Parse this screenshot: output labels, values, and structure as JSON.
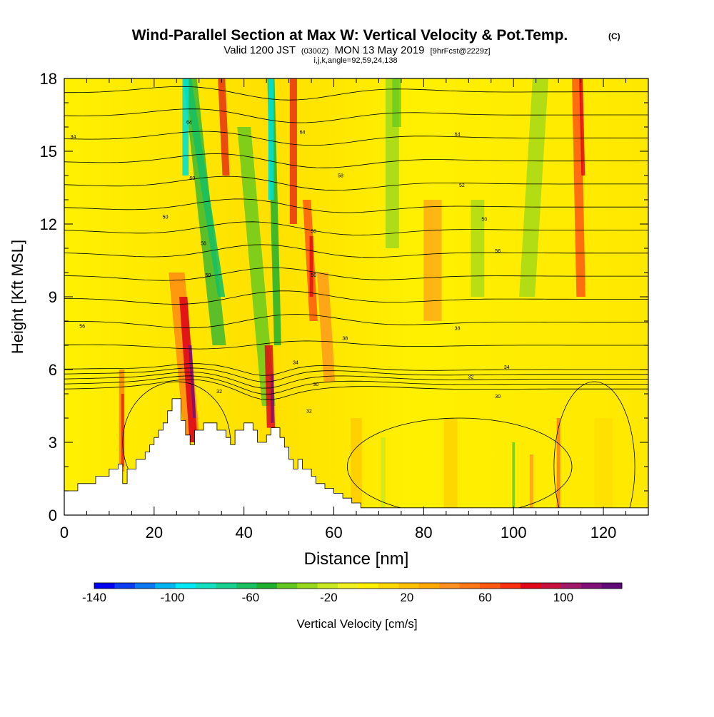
{
  "chart_data": {
    "type": "heatmap",
    "title": "Wind-Parallel Section at Max W: Vertical Velocity & Pot.Temp.",
    "title_mark": "(C)",
    "subtitle_parts": [
      "Valid 1200 JST",
      "(0300Z)",
      "MON 13 May 2019",
      "[9hrFcst@2229z]"
    ],
    "subtitle2": "i,j,k,angle=92,59,24,138",
    "xlabel": "Distance [nm]",
    "ylabel": "Height [Kft MSL]",
    "xlim": [
      0,
      130
    ],
    "ylim": [
      0,
      18
    ],
    "x_ticks": [
      0,
      20,
      40,
      60,
      80,
      100,
      120
    ],
    "y_ticks": [
      0,
      3,
      6,
      9,
      12,
      15,
      18
    ],
    "colorbar": {
      "label": "Vertical Velocity [cm/s]",
      "tick_values": [
        -140,
        -100,
        -60,
        -20,
        20,
        60,
        100
      ],
      "tick_labels": [
        "-140",
        "-100",
        "-60",
        "-20",
        "20",
        "60",
        "100"
      ],
      "min": -140,
      "max": 120,
      "step": 10,
      "colors": [
        "#0000f0",
        "#0a3cf0",
        "#0a78f0",
        "#00b4f0",
        "#00e8f8",
        "#10e0c0",
        "#18d090",
        "#18c060",
        "#20b030",
        "#60c820",
        "#98d81c",
        "#c8e820",
        "#f0f020",
        "#fff000",
        "#ffd800",
        "#ffc000",
        "#ffa800",
        "#ff9020",
        "#ff7818",
        "#ff5810",
        "#f83010",
        "#e00818",
        "#c8103c",
        "#a01868",
        "#801078",
        "#600878"
      ]
    },
    "potential_temperature_labels": [
      {
        "x": 2,
        "y": 15.6,
        "label": "34"
      },
      {
        "x": 27.8,
        "y": 16.2,
        "label": "64"
      },
      {
        "x": 53,
        "y": 15.8,
        "label": "64"
      },
      {
        "x": 87.5,
        "y": 15.7,
        "label": "64"
      },
      {
        "x": 28.5,
        "y": 13.9,
        "label": "60"
      },
      {
        "x": 61.5,
        "y": 14,
        "label": "58"
      },
      {
        "x": 88.5,
        "y": 13.6,
        "label": "52"
      },
      {
        "x": 22.5,
        "y": 12.3,
        "label": "50"
      },
      {
        "x": 55.5,
        "y": 11.7,
        "label": "50"
      },
      {
        "x": 93.5,
        "y": 12.2,
        "label": "50"
      },
      {
        "x": 31,
        "y": 11.2,
        "label": "56"
      },
      {
        "x": 96.5,
        "y": 10.9,
        "label": "56"
      },
      {
        "x": 32,
        "y": 9.9,
        "label": "50"
      },
      {
        "x": 55.5,
        "y": 9.9,
        "label": "50"
      },
      {
        "x": 4,
        "y": 7.8,
        "label": "56"
      },
      {
        "x": 62.5,
        "y": 7.3,
        "label": "38"
      },
      {
        "x": 87.5,
        "y": 7.7,
        "label": "38"
      },
      {
        "x": 51.5,
        "y": 6.3,
        "label": "34"
      },
      {
        "x": 98.5,
        "y": 6.1,
        "label": "34"
      },
      {
        "x": 56,
        "y": 5.4,
        "label": "30"
      },
      {
        "x": 90.5,
        "y": 5.7,
        "label": "32"
      },
      {
        "x": 96.5,
        "y": 4.9,
        "label": "30"
      },
      {
        "x": 34.5,
        "y": 5.1,
        "label": "32"
      },
      {
        "x": 54.5,
        "y": 4.3,
        "label": "32"
      }
    ],
    "terrain_profile": [
      [
        0,
        1.0
      ],
      [
        3,
        1.0
      ],
      [
        3,
        1.3
      ],
      [
        7,
        1.3
      ],
      [
        7,
        1.6
      ],
      [
        10,
        1.6
      ],
      [
        10,
        1.9
      ],
      [
        12,
        1.9
      ],
      [
        12,
        2.1
      ],
      [
        13,
        2.1
      ],
      [
        13,
        1.3
      ],
      [
        14,
        1.3
      ],
      [
        14,
        1.9
      ],
      [
        16,
        1.9
      ],
      [
        16,
        2.3
      ],
      [
        18,
        2.3
      ],
      [
        18,
        2.6
      ],
      [
        19,
        2.6
      ],
      [
        19,
        2.9
      ],
      [
        20,
        2.9
      ],
      [
        20,
        3.2
      ],
      [
        21,
        3.2
      ],
      [
        21,
        3.5
      ],
      [
        22,
        3.5
      ],
      [
        22,
        3.8
      ],
      [
        23,
        3.8
      ],
      [
        23,
        4.3
      ],
      [
        24,
        4.3
      ],
      [
        24,
        4.8
      ],
      [
        26,
        4.8
      ],
      [
        26,
        3.9
      ],
      [
        27,
        3.9
      ],
      [
        27,
        3.3
      ],
      [
        28,
        3.3
      ],
      [
        28,
        2.9
      ],
      [
        29,
        2.9
      ],
      [
        29,
        3.5
      ],
      [
        31,
        3.5
      ],
      [
        31,
        3.8
      ],
      [
        34,
        3.8
      ],
      [
        34,
        3.5
      ],
      [
        36,
        3.5
      ],
      [
        36,
        3.2
      ],
      [
        37,
        3.2
      ],
      [
        37,
        2.9
      ],
      [
        38,
        2.9
      ],
      [
        38,
        3.5
      ],
      [
        40,
        3.5
      ],
      [
        40,
        3.8
      ],
      [
        42,
        3.8
      ],
      [
        42,
        3.5
      ],
      [
        43,
        3.5
      ],
      [
        43,
        3.0
      ],
      [
        45,
        3.0
      ],
      [
        45,
        3.3
      ],
      [
        46,
        3.3
      ],
      [
        46,
        3.6
      ],
      [
        48,
        3.6
      ],
      [
        48,
        3.2
      ],
      [
        49,
        3.2
      ],
      [
        49,
        2.8
      ],
      [
        50,
        2.8
      ],
      [
        50,
        2.3
      ],
      [
        51,
        2.3
      ],
      [
        51,
        1.9
      ],
      [
        52,
        1.9
      ],
      [
        52,
        2.3
      ],
      [
        53,
        2.3
      ],
      [
        53,
        1.9
      ],
      [
        55,
        1.9
      ],
      [
        55,
        1.6
      ],
      [
        56,
        1.6
      ],
      [
        56,
        1.3
      ],
      [
        58,
        1.3
      ],
      [
        58,
        1.1
      ],
      [
        60,
        1.1
      ],
      [
        60,
        0.9
      ],
      [
        62,
        0.9
      ],
      [
        62,
        0.7
      ],
      [
        64,
        0.7
      ],
      [
        64,
        0.5
      ],
      [
        66,
        0.5
      ],
      [
        66,
        0.3
      ],
      [
        130,
        0.3
      ]
    ],
    "axis_colors": {
      "frame": "#000000",
      "contour": "#000000",
      "terrain": "#ffffff"
    }
  }
}
